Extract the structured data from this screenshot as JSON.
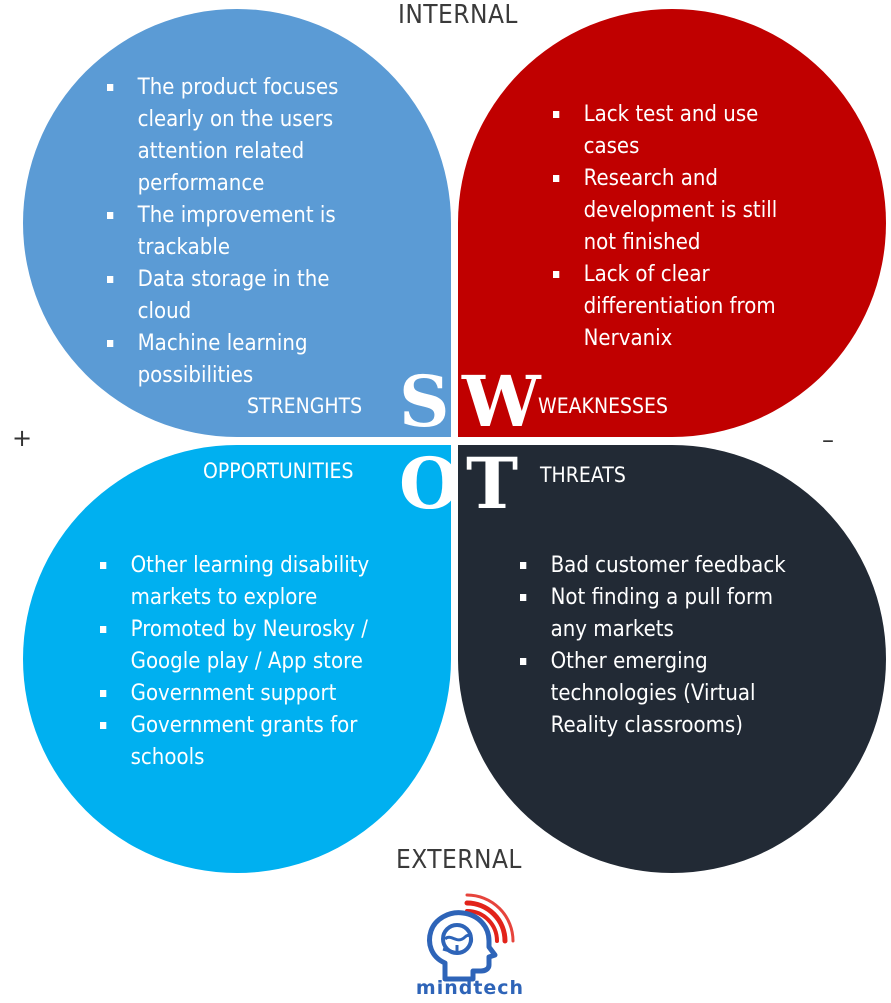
{
  "labels": {
    "internal": "INTERNAL",
    "external": "EXTERNAL",
    "plus": "+",
    "minus": "–"
  },
  "colors": {
    "strengths": "#5b9bd5",
    "weaknesses": "#c00000",
    "opportunities": "#00b0f0",
    "threats": "#222a35",
    "logo_blue": "#2e64b8",
    "logo_red": "#e2231a"
  },
  "strengths": {
    "letter": "S",
    "title": "STRENGHTS",
    "items": [
      "The product focuses clearly on the users attention related performance",
      "The improvement is trackable",
      "Data storage in the cloud",
      "Machine learning possibilities"
    ]
  },
  "weaknesses": {
    "letter": "W",
    "title": "WEAKNESSES",
    "items": [
      "Lack test and use cases",
      "Research and development is still not finished",
      "Lack of clear differentiation from Nervanix"
    ]
  },
  "opportunities": {
    "letter": "O",
    "title": "OPPORTUNITIES",
    "items": [
      "Other learning disability markets to explore",
      "Promoted by Neurosky / Google play / App store",
      "Government support",
      "Government grants for schools"
    ]
  },
  "threats": {
    "letter": "T",
    "title": "THREATS",
    "items": [
      "Bad customer feedback",
      "Not finding a pull form any markets",
      "Other emerging technologies (Virtual Reality classrooms)"
    ]
  },
  "logo": {
    "icon": "brain-head-signal-icon",
    "text": "mindtech"
  }
}
